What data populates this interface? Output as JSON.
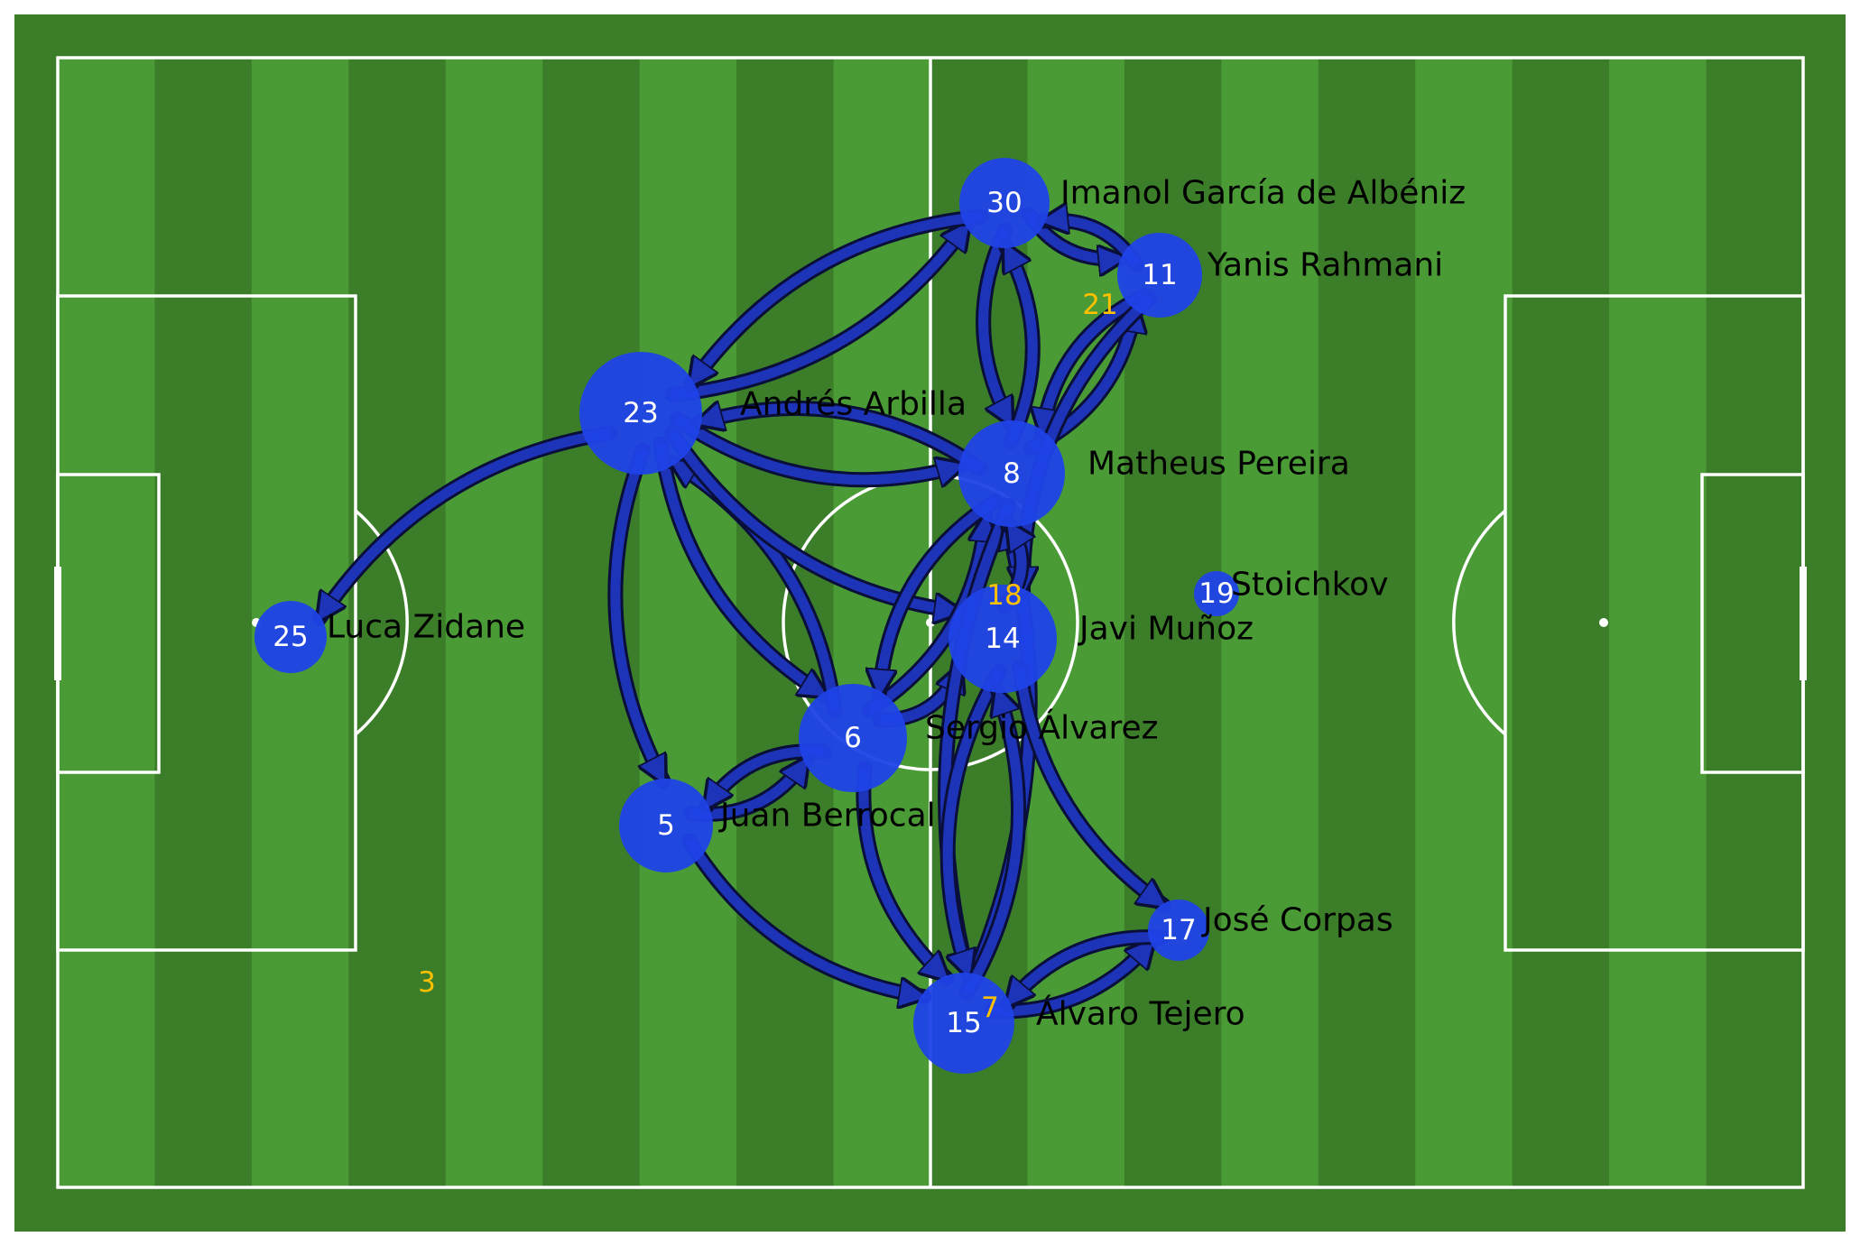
{
  "colors": {
    "grass_light": "#4a9a36",
    "grass_dark": "#3b7d28",
    "lines": "#ffffff",
    "node": "#1f43e8",
    "pass": "#1e34b8",
    "pass_outline": "#0a0f3a",
    "sub": "#ffc000"
  },
  "players": [
    {
      "id": "p30",
      "number": "30",
      "name": "Imanol García de Albéniz"
    },
    {
      "id": "p11",
      "number": "11",
      "name": "Yanis Rahmani"
    },
    {
      "id": "p23",
      "number": "23",
      "name": "Andrés Arbilla"
    },
    {
      "id": "p8",
      "number": "8",
      "name": "Matheus Pereira"
    },
    {
      "id": "p19",
      "number": "19",
      "name": "Stoichkov"
    },
    {
      "id": "p25",
      "number": "25",
      "name": "Luca Zidane"
    },
    {
      "id": "p14",
      "number": "14",
      "name": "Javi Muñoz"
    },
    {
      "id": "p6",
      "number": "6",
      "name": "Sergio Álvarez"
    },
    {
      "id": "p5",
      "number": "5",
      "name": "Juan Berrocal"
    },
    {
      "id": "p17",
      "number": "17",
      "name": "José Corpas"
    },
    {
      "id": "p15",
      "number": "15",
      "name": "Álvaro Tejero"
    }
  ],
  "substitutes": [
    {
      "id": "s21",
      "number": "21"
    },
    {
      "id": "s18",
      "number": "18"
    },
    {
      "id": "s3",
      "number": "3"
    },
    {
      "id": "s7",
      "number": "7"
    }
  ],
  "passes": [
    {
      "from": "p23",
      "to": "p30"
    },
    {
      "from": "p30",
      "to": "p23"
    },
    {
      "from": "p30",
      "to": "p11"
    },
    {
      "from": "p11",
      "to": "p30"
    },
    {
      "from": "p30",
      "to": "p8"
    },
    {
      "from": "p8",
      "to": "p30"
    },
    {
      "from": "p8",
      "to": "p11"
    },
    {
      "from": "p11",
      "to": "p8"
    },
    {
      "from": "p23",
      "to": "p8"
    },
    {
      "from": "p8",
      "to": "p23"
    },
    {
      "from": "p23",
      "to": "p25"
    },
    {
      "from": "p23",
      "to": "p5"
    },
    {
      "from": "p23",
      "to": "p6"
    },
    {
      "from": "p6",
      "to": "p23"
    },
    {
      "from": "p23",
      "to": "p14"
    },
    {
      "from": "p6",
      "to": "p8"
    },
    {
      "from": "p8",
      "to": "p6"
    },
    {
      "from": "p6",
      "to": "p14"
    },
    {
      "from": "p5",
      "to": "p6"
    },
    {
      "from": "p6",
      "to": "p5"
    },
    {
      "from": "p5",
      "to": "p15"
    },
    {
      "from": "p6",
      "to": "p15"
    },
    {
      "from": "p8",
      "to": "p15"
    },
    {
      "from": "p15",
      "to": "p8"
    },
    {
      "from": "p14",
      "to": "p15"
    },
    {
      "from": "p15",
      "to": "p14"
    },
    {
      "from": "p14",
      "to": "p17"
    },
    {
      "from": "p15",
      "to": "p17"
    },
    {
      "from": "p17",
      "to": "p15"
    },
    {
      "from": "p11",
      "to": "p14"
    },
    {
      "from": "p14",
      "to": "p8"
    }
  ]
}
